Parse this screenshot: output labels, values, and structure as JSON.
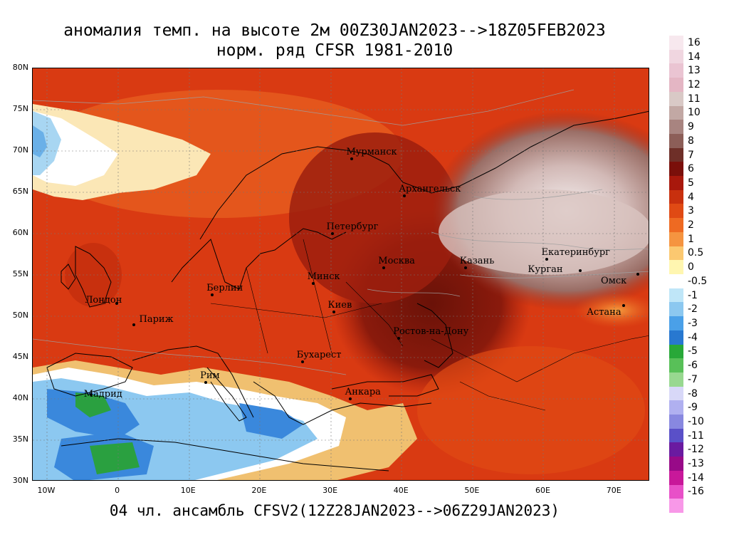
{
  "title": {
    "line1": "аномалия темп. на высоте 2м 00Z30JAN2023-->18Z05FEB2023",
    "line2": "норм. ряд CFSR 1981-2010"
  },
  "footer": "04 чл. ансамбль CFSV2(12Z28JAN2023-->06Z29JAN2023)",
  "map": {
    "lon_range": [
      -12,
      75
    ],
    "lat_range": [
      30,
      80
    ],
    "lat_ticks": [
      "30N",
      "35N",
      "40N",
      "45N",
      "50N",
      "55N",
      "60N",
      "65N",
      "70N",
      "75N",
      "80N"
    ],
    "lon_ticks": [
      "10W",
      "0",
      "10E",
      "20E",
      "30E",
      "40E",
      "50E",
      "60E",
      "70E"
    ],
    "cities": [
      {
        "name": "Мурманск",
        "lon": 33.1,
        "lat": 69.0
      },
      {
        "name": "Архангельск",
        "lon": 40.5,
        "lat": 64.5
      },
      {
        "name": "Петербург",
        "lon": 30.3,
        "lat": 59.9
      },
      {
        "name": "Москва",
        "lon": 37.6,
        "lat": 55.8
      },
      {
        "name": "Казань",
        "lon": 49.1,
        "lat": 55.8
      },
      {
        "name": "Екатеринбург",
        "lon": 60.6,
        "lat": 56.8
      },
      {
        "name": "Курган",
        "lon": 65.3,
        "lat": 55.4
      },
      {
        "name": "Омск",
        "lon": 73.4,
        "lat": 55.0
      },
      {
        "name": "Астана",
        "lon": 71.4,
        "lat": 51.2
      },
      {
        "name": "Минск",
        "lon": 27.6,
        "lat": 53.9
      },
      {
        "name": "Берлин",
        "lon": 13.4,
        "lat": 52.5
      },
      {
        "name": "Лондон",
        "lon": -0.1,
        "lat": 51.5
      },
      {
        "name": "Париж",
        "lon": 2.3,
        "lat": 48.9
      },
      {
        "name": "Киев",
        "lon": 30.5,
        "lat": 50.4
      },
      {
        "name": "Ростов-на-Дону",
        "lon": 39.7,
        "lat": 47.2
      },
      {
        "name": "Бухарест",
        "lon": 26.1,
        "lat": 44.4
      },
      {
        "name": "Рим",
        "lon": 12.5,
        "lat": 41.9
      },
      {
        "name": "Мадрид",
        "lon": -3.7,
        "lat": 40.4
      },
      {
        "name": "Анкара",
        "lon": 32.9,
        "lat": 39.9
      }
    ]
  },
  "colorbar": {
    "labels": [
      "16",
      "14",
      "13",
      "12",
      "11",
      "10",
      "9",
      "8",
      "7",
      "6",
      "5",
      "4",
      "3",
      "2",
      "1",
      "0.5",
      "0",
      "-0.5",
      "-1",
      "-2",
      "-3",
      "-4",
      "-5",
      "-6",
      "-7",
      "-8",
      "-9",
      "-10",
      "-11",
      "-12",
      "-13",
      "-14",
      "-16"
    ],
    "colors": [
      "#f7e8ee",
      "#f0d6e0",
      "#eac4d2",
      "#e4b6c4",
      "#d9c9c6",
      "#c2a8a4",
      "#a88480",
      "#8c5e58",
      "#6e2f28",
      "#7a0f0a",
      "#a8180c",
      "#c8300e",
      "#e04a14",
      "#ee6a22",
      "#f59440",
      "#fbc870",
      "#fff6b0",
      "#ffffff",
      "#bfe6f8",
      "#8cc8f0",
      "#4aa0e8",
      "#2878d0",
      "#28a838",
      "#58c058",
      "#98d890",
      "#d8d8f8",
      "#b0b0f0",
      "#8888e0",
      "#5a50c8",
      "#6a1aa0",
      "#980a88",
      "#c8189a",
      "#e850c8",
      "#f898e8"
    ]
  }
}
